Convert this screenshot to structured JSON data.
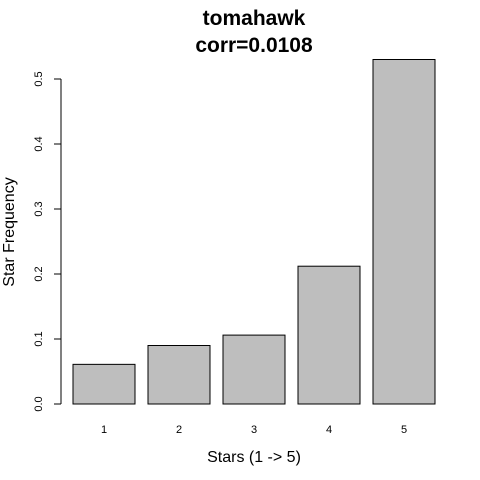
{
  "chart_data": {
    "type": "bar",
    "title": "tomahawk",
    "subtitle": "corr=0.0108",
    "xlabel": "Stars (1 -> 5)",
    "ylabel": "Star Frequency",
    "categories": [
      "1",
      "2",
      "3",
      "4",
      "5"
    ],
    "values": [
      0.061,
      0.09,
      0.106,
      0.212,
      0.53
    ],
    "ylim": [
      0,
      0.53
    ],
    "yticks": [
      0.0,
      0.1,
      0.2,
      0.3,
      0.4,
      0.5
    ],
    "ytick_labels": [
      "0.0",
      "0.1",
      "0.2",
      "0.3",
      "0.4",
      "0.5"
    ],
    "grid": false,
    "colors": {
      "bar_fill": "#bebebe",
      "bar_stroke": "#000000"
    }
  }
}
